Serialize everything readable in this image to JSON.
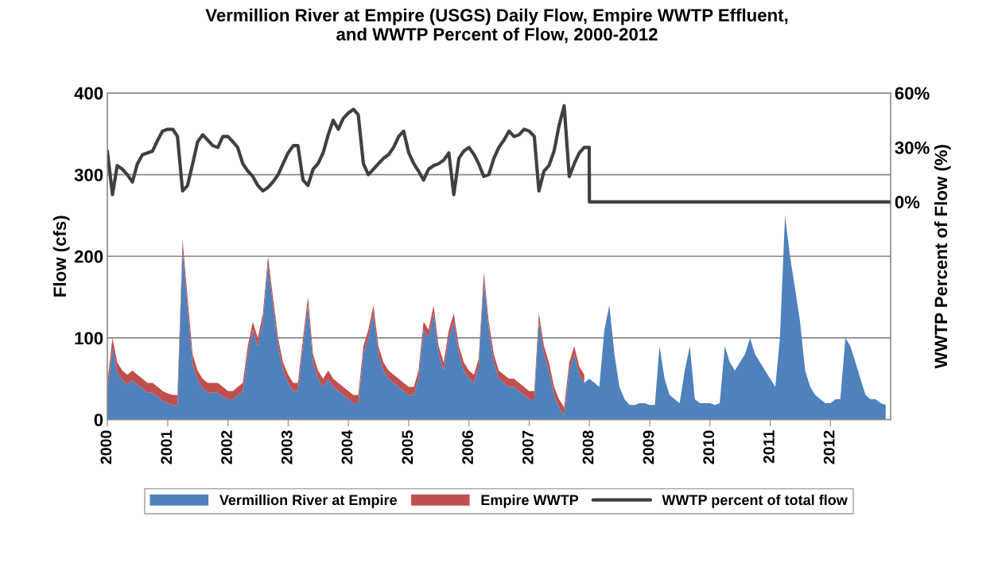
{
  "chart_data": {
    "type": "area",
    "title": "Vermillion River at Empire (USGS) Daily Flow, Empire WWTP Effluent,\nand WWTP Percent of Flow, 2000-2012",
    "ylabel": "Flow (cfs)",
    "y2label": "WWTP Percent of Flow (%)",
    "stacked": true,
    "legend": "bottom",
    "grid": "y",
    "x": [
      "2000-01",
      "2000-02",
      "2000-03",
      "2000-04",
      "2000-05",
      "2000-06",
      "2000-07",
      "2000-08",
      "2000-09",
      "2000-10",
      "2000-11",
      "2000-12",
      "2001-01",
      "2001-02",
      "2001-03",
      "2001-04",
      "2001-05",
      "2001-06",
      "2001-07",
      "2001-08",
      "2001-09",
      "2001-10",
      "2001-11",
      "2001-12",
      "2002-01",
      "2002-02",
      "2002-03",
      "2002-04",
      "2002-05",
      "2002-06",
      "2002-07",
      "2002-08",
      "2002-09",
      "2002-10",
      "2002-11",
      "2002-12",
      "2003-01",
      "2003-02",
      "2003-03",
      "2003-04",
      "2003-05",
      "2003-06",
      "2003-07",
      "2003-08",
      "2003-09",
      "2003-10",
      "2003-11",
      "2003-12",
      "2004-01",
      "2004-02",
      "2004-03",
      "2004-04",
      "2004-05",
      "2004-06",
      "2004-07",
      "2004-08",
      "2004-09",
      "2004-10",
      "2004-11",
      "2004-12",
      "2005-01",
      "2005-02",
      "2005-03",
      "2005-04",
      "2005-05",
      "2005-06",
      "2005-07",
      "2005-08",
      "2005-09",
      "2005-10",
      "2005-11",
      "2005-12",
      "2006-01",
      "2006-02",
      "2006-03",
      "2006-04",
      "2006-05",
      "2006-06",
      "2006-07",
      "2006-08",
      "2006-09",
      "2006-10",
      "2006-11",
      "2006-12",
      "2007-01",
      "2007-02",
      "2007-03",
      "2007-04",
      "2007-05",
      "2007-06",
      "2007-07",
      "2007-08",
      "2007-09",
      "2007-10",
      "2007-11",
      "2007-12",
      "2008-01",
      "2008-02",
      "2008-03",
      "2008-04",
      "2008-05",
      "2008-06",
      "2008-07",
      "2008-08",
      "2008-09",
      "2008-10",
      "2008-11",
      "2008-12",
      "2009-01",
      "2009-02",
      "2009-03",
      "2009-04",
      "2009-05",
      "2009-06",
      "2009-07",
      "2009-08",
      "2009-09",
      "2009-10",
      "2009-11",
      "2009-12",
      "2010-01",
      "2010-02",
      "2010-03",
      "2010-04",
      "2010-05",
      "2010-06",
      "2010-07",
      "2010-08",
      "2010-09",
      "2010-10",
      "2010-11",
      "2010-12",
      "2011-01",
      "2011-02",
      "2011-03",
      "2011-04",
      "2011-05",
      "2011-06",
      "2011-07",
      "2011-08",
      "2011-09",
      "2011-10",
      "2011-11",
      "2011-12",
      "2012-01",
      "2012-02",
      "2012-03",
      "2012-04",
      "2012-05",
      "2012-06",
      "2012-07",
      "2012-08",
      "2012-09",
      "2012-10",
      "2012-11",
      "2012-12"
    ],
    "xlim": [
      "2000-01-01",
      "2012-12-31"
    ],
    "xticks": [
      "2000",
      "2001",
      "2002",
      "2003",
      "2004",
      "2005",
      "2006",
      "2007",
      "2008",
      "2009",
      "2010",
      "2011",
      "2012"
    ],
    "ylim": [
      0,
      400
    ],
    "yticks": [
      0,
      100,
      200,
      300,
      400
    ],
    "y2lim": [
      -120,
      60
    ],
    "y2ticks": [
      {
        "value": 0,
        "label": "0%"
      },
      {
        "value": 30,
        "label": "30%"
      },
      {
        "value": 60,
        "label": "60%"
      }
    ],
    "series": [
      {
        "name": "Vermillion River at Empire",
        "color": "#4f81bd",
        "values": [
          33,
          88,
          58,
          48,
          43,
          48,
          43,
          38,
          33,
          33,
          28,
          23,
          20,
          18,
          18,
          208,
          138,
          68,
          48,
          38,
          33,
          33,
          33,
          28,
          25,
          25,
          30,
          35,
          80,
          110,
          90,
          120,
          190,
          140,
          90,
          60,
          45,
          35,
          35,
          90,
          140,
          70,
          50,
          40,
          50,
          40,
          35,
          30,
          25,
          20,
          20,
          80,
          100,
          130,
          80,
          60,
          50,
          45,
          40,
          35,
          30,
          30,
          50,
          110,
          100,
          130,
          80,
          60,
          100,
          120,
          80,
          60,
          50,
          45,
          65,
          170,
          110,
          70,
          50,
          45,
          40,
          40,
          35,
          30,
          25,
          25,
          120,
          80,
          60,
          30,
          15,
          5,
          60,
          80,
          55,
          45,
          50,
          45,
          40,
          110,
          140,
          80,
          40,
          25,
          18,
          18,
          20,
          20,
          18,
          18,
          90,
          50,
          30,
          25,
          20,
          60,
          90,
          25,
          20,
          20,
          20,
          18,
          20,
          90,
          70,
          60,
          70,
          80,
          100,
          80,
          70,
          60,
          50,
          40,
          100,
          250,
          200,
          160,
          120,
          60,
          40,
          30,
          25,
          20,
          20,
          25,
          25,
          100,
          90,
          70,
          50,
          30,
          25,
          25,
          20,
          18
        ]
      },
      {
        "name": "Empire WWTP",
        "color": "#c0504d",
        "values": [
          12,
          12,
          12,
          12,
          12,
          12,
          12,
          12,
          12,
          12,
          12,
          12,
          12,
          12,
          12,
          12,
          12,
          12,
          12,
          12,
          12,
          12,
          12,
          12,
          10,
          10,
          10,
          10,
          10,
          10,
          10,
          10,
          10,
          10,
          10,
          10,
          10,
          10,
          10,
          10,
          10,
          10,
          10,
          10,
          10,
          10,
          10,
          10,
          10,
          10,
          10,
          10,
          10,
          10,
          10,
          10,
          10,
          10,
          10,
          10,
          10,
          10,
          10,
          10,
          10,
          10,
          10,
          10,
          10,
          10,
          10,
          10,
          10,
          10,
          10,
          10,
          10,
          10,
          10,
          10,
          10,
          10,
          10,
          10,
          10,
          10,
          10,
          10,
          10,
          10,
          10,
          10,
          10,
          10,
          10,
          10,
          null,
          null,
          null,
          null,
          null,
          null,
          null,
          null,
          null,
          null,
          null,
          null,
          null,
          null,
          null,
          null,
          null,
          null,
          null,
          null,
          null,
          null,
          null,
          null,
          null,
          null,
          null,
          null,
          null,
          null,
          null,
          null,
          null,
          null,
          null,
          null,
          null,
          null,
          null,
          null,
          null,
          null,
          null,
          null,
          null,
          null,
          null,
          null,
          null,
          null,
          null,
          null,
          null,
          null,
          null,
          null,
          null,
          null,
          null,
          null
        ]
      },
      {
        "name": "WWTP percent of total flow",
        "type": "line",
        "axis": "y2",
        "color": "#404040",
        "x": [
          "2000-01",
          "2000-02",
          "2000-03",
          "2000-04",
          "2000-05",
          "2000-06",
          "2000-07",
          "2000-08",
          "2000-09",
          "2000-10",
          "2000-11",
          "2000-12",
          "2001-01",
          "2001-02",
          "2001-03",
          "2001-04",
          "2001-05",
          "2001-06",
          "2001-07",
          "2001-08",
          "2001-09",
          "2001-10",
          "2001-11",
          "2001-12",
          "2002-01",
          "2002-02",
          "2002-03",
          "2002-04",
          "2002-05",
          "2002-06",
          "2002-07",
          "2002-08",
          "2002-09",
          "2002-10",
          "2002-11",
          "2002-12",
          "2003-01",
          "2003-02",
          "2003-03",
          "2003-04",
          "2003-05",
          "2003-06",
          "2003-07",
          "2003-08",
          "2003-09",
          "2003-10",
          "2003-11",
          "2003-12",
          "2004-01",
          "2004-02",
          "2004-03",
          "2004-04",
          "2004-05",
          "2004-06",
          "2004-07",
          "2004-08",
          "2004-09",
          "2004-10",
          "2004-11",
          "2004-12",
          "2005-01",
          "2005-02",
          "2005-03",
          "2005-04",
          "2005-05",
          "2005-06",
          "2005-07",
          "2005-08",
          "2005-09",
          "2005-10",
          "2005-11",
          "2005-12",
          "2006-01",
          "2006-02",
          "2006-03",
          "2006-04",
          "2006-05",
          "2006-06",
          "2006-07",
          "2006-08",
          "2006-09",
          "2006-10",
          "2006-11",
          "2006-12",
          "2007-01",
          "2007-02",
          "2007-03",
          "2007-04",
          "2007-05",
          "2007-06",
          "2007-07",
          "2007-08",
          "2007-09",
          "2007-10",
          "2007-11",
          "2007-12",
          "2007-12-31",
          "2008-01-01",
          "2012-12-31"
        ],
        "values": [
          28,
          4,
          20,
          18,
          15,
          11,
          21,
          26,
          27,
          28,
          34,
          39,
          40,
          40,
          36,
          6,
          9,
          21,
          33,
          37,
          34,
          31,
          30,
          36,
          36,
          33,
          30,
          21,
          17,
          14,
          9,
          6,
          8,
          11,
          15,
          21,
          27,
          31,
          31,
          12,
          9,
          18,
          21,
          27,
          37,
          45,
          40,
          46,
          49,
          51,
          48,
          21,
          15,
          18,
          21,
          24,
          26,
          30,
          36,
          39,
          27,
          21,
          17,
          12,
          18,
          20,
          21,
          23,
          27,
          4,
          24,
          28,
          30,
          26,
          21,
          14,
          15,
          24,
          30,
          34,
          39,
          36,
          37,
          40,
          39,
          36,
          6,
          17,
          20,
          28,
          42,
          53,
          14,
          21,
          27,
          30,
          30,
          0,
          0
        ]
      }
    ]
  }
}
